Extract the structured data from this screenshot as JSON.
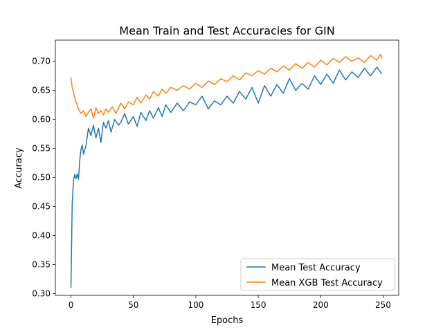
{
  "chart_data": {
    "type": "line",
    "title": "Mean Train and Test Accuracies for GIN",
    "xlabel": "Epochs",
    "ylabel": "Accuracy",
    "xlim": [
      -12.5,
      262.5
    ],
    "ylim": [
      0.297,
      0.7365
    ],
    "xticks": [
      0,
      50,
      100,
      150,
      200,
      250
    ],
    "yticks": [
      0.3,
      0.35,
      0.4,
      0.45,
      0.5,
      0.55,
      0.6,
      0.65,
      0.7
    ],
    "xtick_labels": [
      "0",
      "50",
      "100",
      "150",
      "200",
      "250"
    ],
    "ytick_labels": [
      "0.30",
      "0.35",
      "0.40",
      "0.45",
      "0.50",
      "0.55",
      "0.60",
      "0.65",
      "0.70"
    ],
    "grid": false,
    "legend_position": "lower-right",
    "series": [
      {
        "name": "Mean Test Accuracy",
        "color": "#1f77b4",
        "x": [
          0,
          1,
          2,
          3,
          4,
          5,
          6,
          7,
          8,
          9,
          10,
          12,
          14,
          16,
          18,
          20,
          22,
          24,
          26,
          28,
          30,
          32,
          35,
          38,
          40,
          43,
          46,
          50,
          53,
          56,
          60,
          63,
          66,
          70,
          73,
          76,
          80,
          85,
          90,
          95,
          100,
          105,
          110,
          115,
          120,
          125,
          130,
          135,
          140,
          145,
          150,
          155,
          160,
          165,
          170,
          175,
          180,
          185,
          190,
          195,
          200,
          205,
          210,
          215,
          220,
          225,
          230,
          235,
          240,
          245,
          249
        ],
        "values": [
          0.31,
          0.455,
          0.495,
          0.505,
          0.498,
          0.506,
          0.497,
          0.53,
          0.548,
          0.556,
          0.54,
          0.555,
          0.585,
          0.572,
          0.59,
          0.568,
          0.585,
          0.56,
          0.595,
          0.585,
          0.598,
          0.578,
          0.6,
          0.59,
          0.595,
          0.61,
          0.592,
          0.605,
          0.588,
          0.612,
          0.598,
          0.615,
          0.602,
          0.62,
          0.605,
          0.625,
          0.612,
          0.628,
          0.615,
          0.63,
          0.625,
          0.64,
          0.618,
          0.632,
          0.625,
          0.64,
          0.628,
          0.648,
          0.635,
          0.655,
          0.628,
          0.658,
          0.64,
          0.66,
          0.645,
          0.67,
          0.65,
          0.662,
          0.652,
          0.675,
          0.66,
          0.678,
          0.662,
          0.685,
          0.668,
          0.682,
          0.672,
          0.688,
          0.675,
          0.69,
          0.678
        ]
      },
      {
        "name": "Mean XGB Test Accuracy",
        "color": "#ff7f0e",
        "x": [
          0,
          1,
          2,
          4,
          6,
          8,
          10,
          12,
          14,
          16,
          18,
          20,
          22,
          24,
          26,
          28,
          30,
          33,
          36,
          40,
          43,
          46,
          50,
          53,
          56,
          60,
          63,
          66,
          70,
          73,
          76,
          80,
          85,
          90,
          95,
          100,
          105,
          110,
          115,
          120,
          125,
          130,
          135,
          140,
          145,
          150,
          155,
          160,
          165,
          170,
          175,
          180,
          185,
          190,
          195,
          200,
          205,
          210,
          215,
          220,
          225,
          230,
          235,
          240,
          245,
          248,
          249
        ],
        "values": [
          0.672,
          0.655,
          0.645,
          0.63,
          0.618,
          0.61,
          0.615,
          0.605,
          0.612,
          0.618,
          0.602,
          0.62,
          0.61,
          0.615,
          0.608,
          0.618,
          0.612,
          0.622,
          0.61,
          0.628,
          0.618,
          0.63,
          0.625,
          0.638,
          0.628,
          0.642,
          0.635,
          0.648,
          0.64,
          0.652,
          0.645,
          0.655,
          0.65,
          0.658,
          0.652,
          0.662,
          0.655,
          0.666,
          0.66,
          0.67,
          0.665,
          0.675,
          0.668,
          0.68,
          0.675,
          0.684,
          0.678,
          0.688,
          0.682,
          0.692,
          0.685,
          0.696,
          0.688,
          0.698,
          0.69,
          0.702,
          0.694,
          0.705,
          0.698,
          0.708,
          0.7,
          0.706,
          0.698,
          0.71,
          0.702,
          0.712,
          0.705
        ]
      }
    ]
  }
}
